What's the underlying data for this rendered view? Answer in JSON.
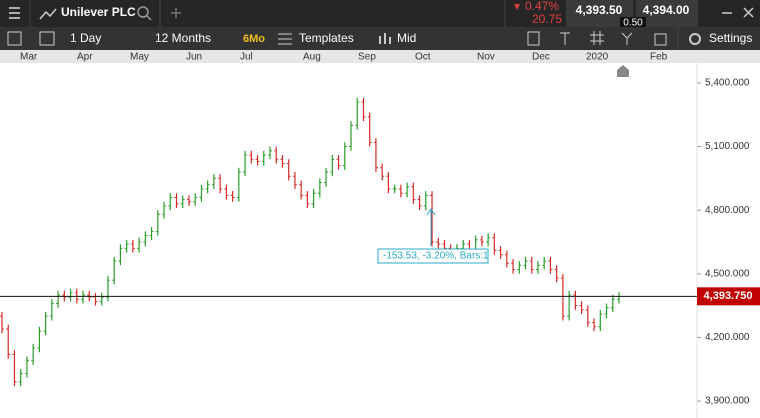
{
  "header": {
    "instrument": "Unilever PLC",
    "change_pct": "0.47%",
    "change_abs": "20.75",
    "sell": "4,393.50",
    "buy": "4,394.00",
    "spread": "0.50"
  },
  "toolbar": {
    "interval": "1 Day",
    "range": "12 Months",
    "preset": "6Mo",
    "templates": "Templates",
    "price_type": "Mid",
    "settings": "Settings"
  },
  "chart_data": {
    "type": "ohlc",
    "x_labels": [
      "Mar",
      "Apr",
      "May",
      "Jun",
      "Jul",
      "Aug",
      "Sep",
      "Oct",
      "Nov",
      "Dec",
      "2020",
      "Feb"
    ],
    "open": [
      4300,
      4240,
      4120,
      3990,
      4030,
      4090,
      4150,
      4230,
      4300,
      4360,
      4400,
      4390,
      4410,
      4380,
      4400,
      4390,
      4370,
      4390,
      4470,
      4560,
      4620,
      4640,
      4620,
      4650,
      4680,
      4700,
      4780,
      4820,
      4860,
      4830,
      4850,
      4840,
      4860,
      4900,
      4920,
      4950,
      4900,
      4870,
      4860,
      4980,
      5060,
      5040,
      5030,
      5060,
      5080,
      5040,
      5020,
      4960,
      4920,
      4870,
      4830,
      4880,
      4930,
      4980,
      5040,
      5010,
      5100,
      5200,
      5310,
      5240,
      5120,
      5000,
      4960,
      4900,
      4900,
      4880,
      4910,
      4850,
      4820,
      4870,
      4650,
      4640,
      4620,
      4590,
      4620,
      4640,
      4610,
      4660,
      4650,
      4670,
      4610,
      4590,
      4550,
      4520,
      4540,
      4560,
      4520,
      4540,
      4560,
      4520,
      4480,
      4300,
      4400,
      4350,
      4330,
      4270,
      4250,
      4310,
      4340,
      4380
    ],
    "high": [
      4320,
      4260,
      4140,
      4050,
      4110,
      4170,
      4250,
      4320,
      4380,
      4420,
      4420,
      4430,
      4430,
      4420,
      4420,
      4410,
      4410,
      4490,
      4580,
      4640,
      4660,
      4660,
      4670,
      4700,
      4720,
      4800,
      4840,
      4880,
      4880,
      4870,
      4870,
      4880,
      4920,
      4940,
      4970,
      4970,
      4920,
      4890,
      5000,
      5080,
      5080,
      5060,
      5080,
      5100,
      5100,
      5060,
      5040,
      4980,
      4940,
      4890,
      4900,
      4950,
      5000,
      5060,
      5060,
      5120,
      5220,
      5330,
      5330,
      5260,
      5140,
      5020,
      4980,
      4920,
      4920,
      4930,
      4930,
      4870,
      4890,
      4890,
      4670,
      4660,
      4640,
      4640,
      4660,
      4660,
      4680,
      4680,
      4690,
      4690,
      4630,
      4610,
      4570,
      4560,
      4580,
      4580,
      4560,
      4580,
      4580,
      4540,
      4500,
      4420,
      4420,
      4370,
      4350,
      4290,
      4330,
      4360,
      4400,
      4414
    ],
    "low": [
      4220,
      4100,
      3970,
      3970,
      4010,
      4070,
      4130,
      4210,
      4280,
      4340,
      4370,
      4370,
      4360,
      4360,
      4370,
      4350,
      4350,
      4370,
      4450,
      4540,
      4600,
      4600,
      4600,
      4630,
      4660,
      4680,
      4760,
      4800,
      4810,
      4810,
      4820,
      4820,
      4840,
      4880,
      4900,
      4880,
      4850,
      4840,
      4840,
      4960,
      5020,
      5010,
      5010,
      5040,
      5020,
      5000,
      4940,
      4900,
      4850,
      4810,
      4810,
      4860,
      4910,
      4960,
      4990,
      4990,
      5080,
      5180,
      5220,
      5100,
      4980,
      4940,
      4880,
      4880,
      4860,
      4860,
      4830,
      4800,
      4800,
      4630,
      4620,
      4600,
      4570,
      4570,
      4600,
      4590,
      4590,
      4630,
      4630,
      4590,
      4570,
      4530,
      4500,
      4500,
      4520,
      4500,
      4500,
      4520,
      4500,
      4460,
      4280,
      4280,
      4330,
      4310,
      4250,
      4230,
      4230,
      4290,
      4320,
      4360
    ],
    "close": [
      4240,
      4120,
      3990,
      4030,
      4090,
      4150,
      4230,
      4300,
      4360,
      4400,
      4390,
      4410,
      4380,
      4400,
      4390,
      4370,
      4390,
      4470,
      4560,
      4620,
      4640,
      4620,
      4650,
      4680,
      4700,
      4780,
      4820,
      4860,
      4830,
      4850,
      4840,
      4860,
      4900,
      4920,
      4950,
      4900,
      4870,
      4860,
      4980,
      5060,
      5040,
      5030,
      5060,
      5080,
      5040,
      5020,
      4960,
      4920,
      4870,
      4830,
      4880,
      4930,
      4980,
      5040,
      5010,
      5100,
      5200,
      5310,
      5240,
      5120,
      5000,
      4960,
      4900,
      4900,
      4880,
      4910,
      4850,
      4820,
      4870,
      4650,
      4640,
      4620,
      4590,
      4620,
      4640,
      4610,
      4660,
      4650,
      4670,
      4610,
      4590,
      4550,
      4520,
      4540,
      4560,
      4520,
      4540,
      4560,
      4520,
      4480,
      4300,
      4400,
      4350,
      4330,
      4270,
      4250,
      4310,
      4340,
      4380,
      4394
    ],
    "up_color": "#2a9d2a",
    "down_color": "#d42a2a",
    "ylim": [
      3820,
      5494
    ],
    "yticks": [
      {
        "value": 3900,
        "label": "3,900.000"
      },
      {
        "value": 4200,
        "label": "4,200.000"
      },
      {
        "value": 4500,
        "label": "4,500.000"
      },
      {
        "value": 4800,
        "label": "4,800.000"
      },
      {
        "value": 5100,
        "label": "5,100.000"
      },
      {
        "value": 5400,
        "label": "5,400.000"
      }
    ],
    "current_price": {
      "value": 4393.75,
      "label": "4,393.750"
    },
    "annotation": "-153.53, -3.20%, Bars:1"
  }
}
